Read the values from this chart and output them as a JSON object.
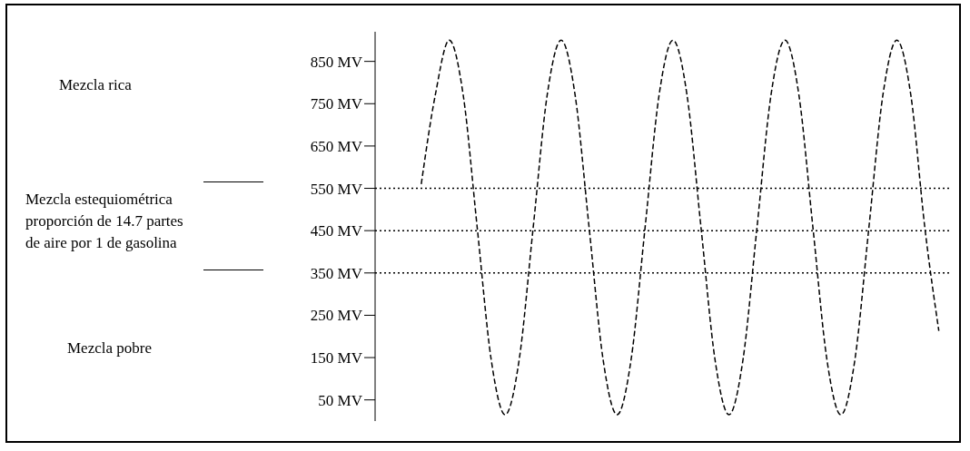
{
  "chart_data": {
    "type": "line",
    "categories": [
      null,
      null,
      null,
      null,
      null,
      null,
      null,
      null,
      null,
      null,
      null,
      null,
      null,
      null,
      null,
      null,
      null,
      null,
      null,
      null,
      null,
      null,
      null,
      null,
      null,
      null,
      null,
      null,
      null,
      null,
      null,
      null,
      null,
      null,
      null,
      null,
      null,
      null
    ],
    "series": [
      {
        "color": "#000000",
        "values": [
          560,
          770,
          900,
          770,
          457,
          145,
          15,
          145,
          457,
          770,
          900,
          770,
          457,
          145,
          15,
          145,
          457,
          770,
          900,
          770,
          457,
          145,
          15,
          145,
          457,
          770,
          900,
          770,
          457,
          145,
          15,
          145,
          457,
          770,
          900,
          770,
          457,
          213
        ]
      }
    ],
    "ylim": [
      0,
      920
    ],
    "yticks": [
      {
        "value": 50,
        "label": "50 MV"
      },
      {
        "value": 150,
        "label": "150 MV"
      },
      {
        "value": 250,
        "label": "250 MV"
      },
      {
        "value": 350,
        "label": "350 MV"
      },
      {
        "value": 450,
        "label": "450 MV"
      },
      {
        "value": 550,
        "label": "550 MV"
      },
      {
        "value": 650,
        "label": "650 MV"
      },
      {
        "value": 750,
        "label": "750 MV"
      },
      {
        "value": 850,
        "label": "850 MV"
      }
    ],
    "ref_lines": [
      {
        "axis": "y",
        "value": 550,
        "color": "#000000",
        "line_style": "dotted"
      },
      {
        "axis": "y",
        "value": 450,
        "color": "#000000",
        "line_style": "dotted"
      },
      {
        "axis": "y",
        "value": 350,
        "color": "#000000",
        "line_style": "dotted"
      }
    ],
    "annotations": [
      "Mezcla rica",
      "Mezcla estequiométrica\nproporción de 14.7 partes\nde aire por 1 de gasolina",
      "Mezcla pobre"
    ],
    "tick_labels": "y",
    "line_style": "dashed",
    "marker": "none"
  }
}
